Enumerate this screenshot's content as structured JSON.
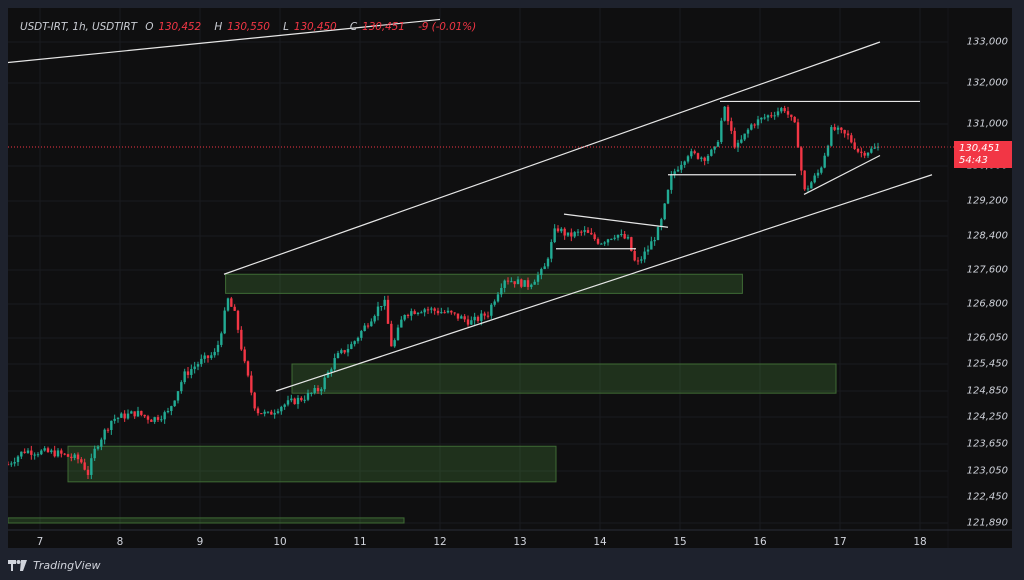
{
  "header": {
    "symbol": "USDT-IRT, 1h, USDTIRT",
    "open_label": "O",
    "open": "130,452",
    "high_label": "H",
    "high": "130,550",
    "low_label": "L",
    "low": "130,450",
    "close_label": "C",
    "close": "130,451",
    "change": "-9 (-0.01%)"
  },
  "price_tag": {
    "price": "130,451",
    "countdown": "54:43"
  },
  "footer": {
    "brand": "TradingView"
  },
  "colors": {
    "up": "#22ab94",
    "down": "#f23645",
    "zone_fill": "rgba(76,140,60,0.28)",
    "zone_border": "#3f6b35",
    "line": "#e6e6e6",
    "bg": "#0f0f10",
    "frame": "#1e222d"
  },
  "chart_data": {
    "type": "candlestick",
    "title": "USDT-IRT, 1h, USDTIRT",
    "xlabel": "",
    "ylabel": "",
    "ylim": [
      121890,
      133000
    ],
    "x_ticks": [
      "7",
      "8",
      "9",
      "10",
      "11",
      "12",
      "13",
      "14",
      "15",
      "16",
      "17",
      "18"
    ],
    "y_ticks": [
      "133,000",
      "132,000",
      "131,000",
      "130,000",
      "129,200",
      "128,400",
      "127,600",
      "126,800",
      "126,050",
      "125,450",
      "124,850",
      "124,250",
      "123,650",
      "123,050",
      "122,450",
      "121,890"
    ],
    "last_price": 130451,
    "path": [
      [
        6.6,
        123200
      ],
      [
        6.8,
        123500
      ],
      [
        7.2,
        123450
      ],
      [
        7.5,
        123300
      ],
      [
        7.6,
        123000
      ],
      [
        7.7,
        123600
      ],
      [
        7.9,
        124200
      ],
      [
        8.2,
        124350
      ],
      [
        8.4,
        124200
      ],
      [
        8.6,
        124350
      ],
      [
        8.8,
        125200
      ],
      [
        9.0,
        125500
      ],
      [
        9.2,
        125700
      ],
      [
        9.35,
        126900
      ],
      [
        9.45,
        126500
      ],
      [
        9.55,
        125500
      ],
      [
        9.7,
        124400
      ],
      [
        9.85,
        124300
      ],
      [
        10.0,
        124500
      ],
      [
        10.3,
        124700
      ],
      [
        10.5,
        124900
      ],
      [
        10.7,
        125600
      ],
      [
        10.9,
        125900
      ],
      [
        11.1,
        126400
      ],
      [
        11.3,
        126900
      ],
      [
        11.4,
        125800
      ],
      [
        11.55,
        126600
      ],
      [
        11.8,
        126700
      ],
      [
        12.1,
        126600
      ],
      [
        12.4,
        126400
      ],
      [
        12.6,
        126600
      ],
      [
        12.8,
        127400
      ],
      [
        13.1,
        127250
      ],
      [
        13.3,
        127600
      ],
      [
        13.45,
        128600
      ],
      [
        13.6,
        128400
      ],
      [
        13.8,
        128500
      ],
      [
        14.0,
        128250
      ],
      [
        14.2,
        128450
      ],
      [
        14.35,
        128300
      ],
      [
        14.45,
        127700
      ],
      [
        14.6,
        128100
      ],
      [
        14.75,
        128600
      ],
      [
        14.9,
        129800
      ],
      [
        15.1,
        130300
      ],
      [
        15.3,
        130200
      ],
      [
        15.45,
        130400
      ],
      [
        15.55,
        131400
      ],
      [
        15.7,
        130400
      ],
      [
        15.9,
        131000
      ],
      [
        16.1,
        131200
      ],
      [
        16.3,
        131400
      ],
      [
        16.45,
        130900
      ],
      [
        16.55,
        129400
      ],
      [
        16.75,
        129900
      ],
      [
        16.9,
        130900
      ],
      [
        17.1,
        130700
      ],
      [
        17.25,
        130300
      ],
      [
        17.5,
        130450
      ]
    ],
    "zones": [
      {
        "from_day": 9.32,
        "to_day": 15.78,
        "top": 127500,
        "bottom": 127050
      },
      {
        "from_day": 10.15,
        "to_day": 16.95,
        "top": 125450,
        "bottom": 124800
      },
      {
        "from_day": 7.35,
        "to_day": 13.45,
        "top": 123600,
        "bottom": 122800
      },
      {
        "from_day": 6.6,
        "to_day": 11.55,
        "top": 122000,
        "bottom": 121890
      }
    ],
    "lines": [
      {
        "name": "upper-channel-top",
        "from": [
          6.6,
          132500
        ],
        "to": [
          12.0,
          133550
        ]
      },
      {
        "name": "upper-channel",
        "from": [
          9.3,
          127500
        ],
        "to": [
          17.5,
          133000
        ]
      },
      {
        "name": "lower-channel",
        "from": [
          9.95,
          124850
        ],
        "to": [
          18.15,
          129800
        ]
      },
      {
        "name": "resistance-top",
        "from": [
          15.5,
          131550
        ],
        "to": [
          18.0,
          131550
        ]
      },
      {
        "name": "range-bottom",
        "from": [
          14.85,
          129800
        ],
        "to": [
          16.45,
          129800
        ]
      },
      {
        "name": "flag-top",
        "from": [
          13.55,
          128900
        ],
        "to": [
          14.85,
          128600
        ]
      },
      {
        "name": "flag-bottom",
        "from": [
          13.45,
          128100
        ],
        "to": [
          14.45,
          128100
        ]
      },
      {
        "name": "rising-support",
        "from": [
          16.55,
          129350
        ],
        "to": [
          17.5,
          130250
        ]
      }
    ]
  }
}
